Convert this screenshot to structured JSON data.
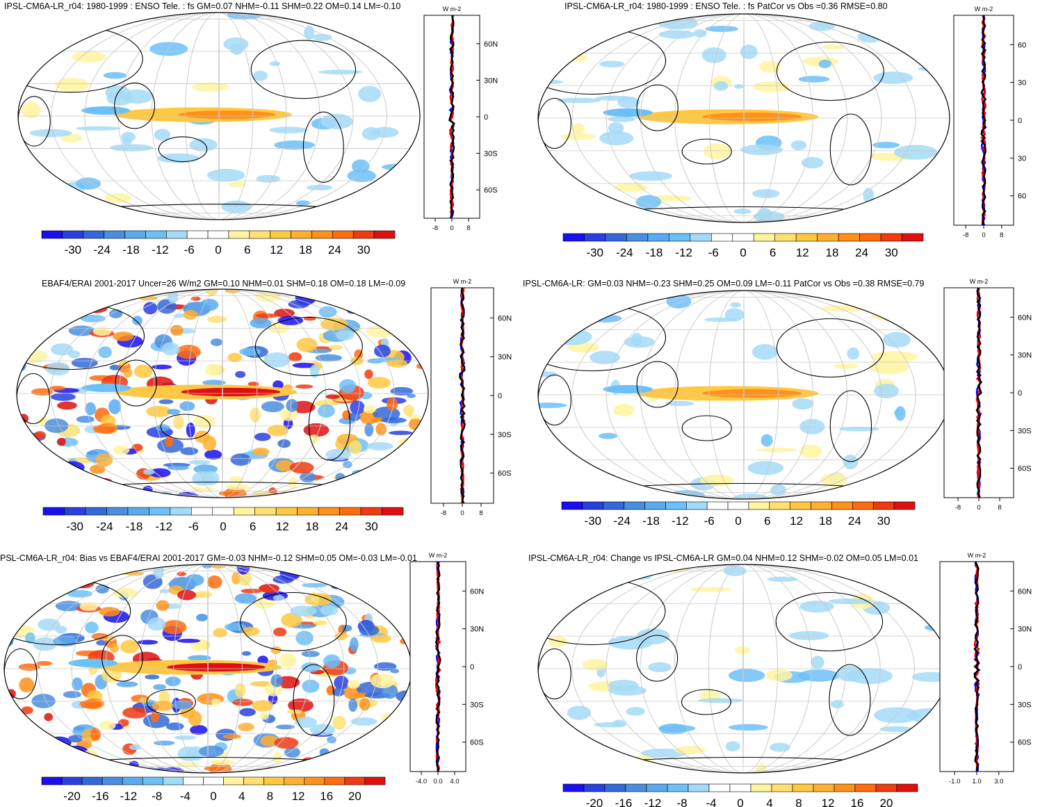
{
  "panels": [
    {
      "title": "IPSL-CM6A-LR_r04: 1980-1999 : ENSO Tele. : fs GM=0.07 NHM=-0.11 SHM=0.22 OM=0.14 LM=-0.10",
      "unit": "W m-2",
      "lat_ticks": [
        "60N",
        "30N",
        "0",
        "30S",
        "60S"
      ],
      "zonal_xticks": [
        "-8",
        "0",
        "8"
      ],
      "colorbar_ticks": [
        "-30",
        "-24",
        "-18",
        "-12",
        "-6",
        "0",
        "6",
        "12",
        "18",
        "24",
        "30"
      ]
    },
    {
      "title": "IPSL-CM6A-LR_r04: 1980-1999 : ENSO Tele. : fs PatCor vs Obs =0.36 RMSE=0.80",
      "unit": "W m-2",
      "lat_ticks": [
        "60",
        "30",
        "0",
        "30",
        "60"
      ],
      "zonal_xticks": [
        "-8",
        "0",
        "8"
      ],
      "colorbar_ticks": [
        "-30",
        "-24",
        "-18",
        "-12",
        "-6",
        "0",
        "6",
        "12",
        "18",
        "24",
        "30"
      ]
    },
    {
      "title": "EBAF4/ERAI 2001-2017 Uncer=26 W/m2 GM=0.10 NHM=0.01 SHM=0.18 OM=0.18 LM=-0.09",
      "unit": "W m-2",
      "lat_ticks": [
        "60N",
        "30N",
        "0",
        "30S",
        "60S"
      ],
      "zonal_xticks": [
        "-8",
        "0",
        "8"
      ],
      "colorbar_ticks": [
        "-30",
        "-24",
        "-18",
        "-12",
        "-6",
        "0",
        "6",
        "12",
        "18",
        "24",
        "30"
      ]
    },
    {
      "title": "IPSL-CM6A-LR: GM=0.03 NHM=-0.23 SHM=0.25 OM=0.09 LM=-0.11 PatCor vs Obs =0.38 RMSE=0.79",
      "unit": "W m-2",
      "lat_ticks": [
        "60N",
        "30N",
        "0",
        "30S",
        "60S"
      ],
      "zonal_xticks": [
        "-8",
        "0",
        "8"
      ],
      "colorbar_ticks": [
        "-30",
        "-24",
        "-18",
        "-12",
        "-6",
        "0",
        "6",
        "12",
        "18",
        "24",
        "30"
      ]
    },
    {
      "title": "PSL-CM6A-LR_r04: Bias vs EBAF4/ERAI 2001-2017 GM=-0.03 NHM=-0.12 SHM=0.05 OM=-0.03 LM=-0.01",
      "unit": "W m-2",
      "lat_ticks": [
        "60N",
        "30N",
        "0",
        "30S",
        "60S"
      ],
      "zonal_xticks": [
        "-4.0",
        "0.0",
        "4.0"
      ],
      "colorbar_ticks": [
        "-20",
        "-16",
        "-12",
        "-8",
        "-4",
        "0",
        "4",
        "8",
        "12",
        "16",
        "20"
      ]
    },
    {
      "title": "IPSL-CM6A-LR_r04: Change vs IPSL-CM6A-LR GM=0.04 NHM=0.12 SHM=-0.02 OM=0.05 LM=0.01",
      "unit": "W m-2",
      "lat_ticks": [
        "60N",
        "30N",
        "0",
        "30S",
        "60S"
      ],
      "zonal_xticks": [
        "-1.0",
        "1.0",
        "3.0"
      ],
      "colorbar_ticks": [
        "-20",
        "-16",
        "-12",
        "-8",
        "-4",
        "0",
        "4",
        "8",
        "12",
        "16",
        "20"
      ]
    }
  ],
  "colors": {
    "palette": [
      "#1a0ff0",
      "#2a3fe0",
      "#3468d8",
      "#4a8ee0",
      "#5aaaf0",
      "#6cc0f8",
      "#a4daf8",
      "#ffffff",
      "#ffffff",
      "#fff4a0",
      "#ffe070",
      "#ffc840",
      "#ffb030",
      "#ff9018",
      "#ff6c10",
      "#f03a10",
      "#e01010"
    ],
    "zonal_model": "#0000ff",
    "zonal_obs": "#ff0000",
    "zonal_diff": "#000000"
  },
  "chart_data": [
    {
      "type": "heatmap",
      "title": "IPSL-CM6A-LR_r04: 1980-1999 : ENSO Tele. : fs GM=0.07 NHM=-0.11 SHM=0.22 OM=0.14 LM=-0.10",
      "zlim": [
        -30,
        30
      ],
      "zonal_xlim": [
        -8,
        8
      ]
    },
    {
      "type": "heatmap",
      "title": "IPSL-CM6A-LR_r04: 1980-1999 : ENSO Tele. : fs PatCor vs Obs =0.36 RMSE=0.80",
      "zlim": [
        -30,
        30
      ],
      "zonal_xlim": [
        -8,
        8
      ]
    },
    {
      "type": "heatmap",
      "title": "EBAF4/ERAI 2001-2017 Uncer=26 W/m2 GM=0.10 NHM=0.01 SHM=0.18 OM=0.18 LM=-0.09",
      "zlim": [
        -30,
        30
      ],
      "zonal_xlim": [
        -8,
        8
      ]
    },
    {
      "type": "heatmap",
      "title": "IPSL-CM6A-LR: GM=0.03 NHM=-0.23 SHM=0.25 OM=0.09 LM=-0.11 PatCor vs Obs =0.38 RMSE=0.79",
      "zlim": [
        -30,
        30
      ],
      "zonal_xlim": [
        -8,
        8
      ]
    },
    {
      "type": "heatmap",
      "title": "PSL-CM6A-LR_r04: Bias vs EBAF4/ERAI 2001-2017 GM=-0.03 NHM=-0.12 SHM=0.05 OM=-0.03 LM=-0.01",
      "zlim": [
        -20,
        20
      ],
      "zonal_xlim": [
        -4,
        4
      ]
    },
    {
      "type": "heatmap",
      "title": "IPSL-CM6A-LR_r04: Change vs IPSL-CM6A-LR GM=0.04 NHM=0.12 SHM=-0.02 OM=0.05 LM=0.01",
      "zlim": [
        -20,
        20
      ],
      "zonal_xlim": [
        -1,
        3
      ]
    }
  ]
}
